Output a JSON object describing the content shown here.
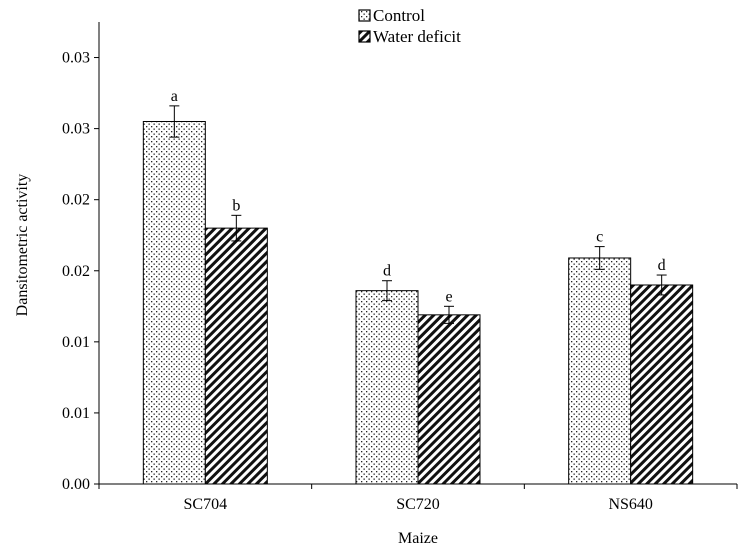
{
  "chart_data": {
    "type": "bar",
    "title": "",
    "xlabel": "Maize",
    "ylabel": "Dansitometric activity",
    "categories": [
      "SC704",
      "SC720",
      "NS640"
    ],
    "ylim": [
      0.0,
      0.0325
    ],
    "yticks": [
      0.0,
      0.005,
      0.01,
      0.015,
      0.02,
      0.025,
      0.03
    ],
    "ytick_labels": [
      "0.00",
      "0.01",
      "0.01",
      "0.02",
      "0.02",
      "0.03",
      "0.03"
    ],
    "series": [
      {
        "name": "Control",
        "pattern": "dots",
        "values": [
          0.0255,
          0.0136,
          0.0159
        ],
        "errors": [
          0.0011,
          0.0007,
          0.0008
        ],
        "labels": [
          "a",
          "d",
          "c"
        ]
      },
      {
        "name": "Water deficit",
        "pattern": "diagonal-hatch",
        "values": [
          0.018,
          0.0119,
          0.014
        ],
        "errors": [
          0.0009,
          0.0006,
          0.0007
        ],
        "labels": [
          "b",
          "e",
          "d"
        ]
      }
    ],
    "legend_position": "top-center",
    "grid": false
  }
}
